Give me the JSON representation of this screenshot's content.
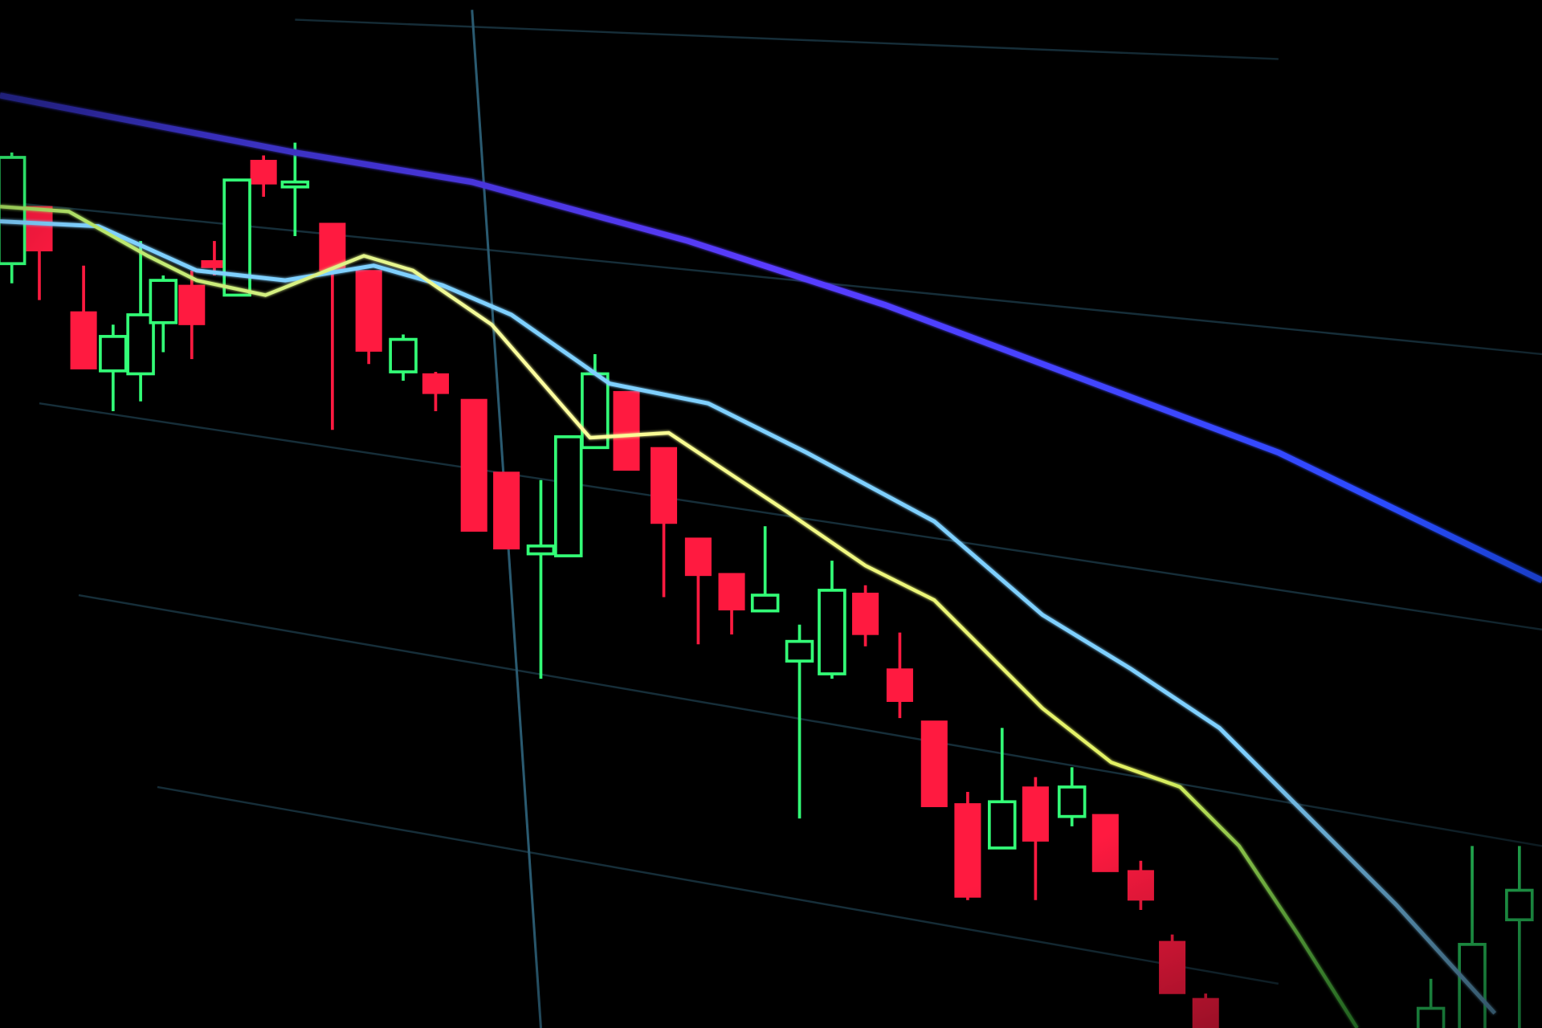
{
  "scene": {
    "subject": "candlestick-chart-on-screen",
    "colors": {
      "background": "#000000",
      "bearish_candle": "#ff1a40",
      "bullish_candle": "#33ff77",
      "slow_average": "#3a3cff",
      "mid_average": "#7fd0ff",
      "fast_average": "#e8f07a",
      "grid": "#1c3a48"
    }
  }
}
